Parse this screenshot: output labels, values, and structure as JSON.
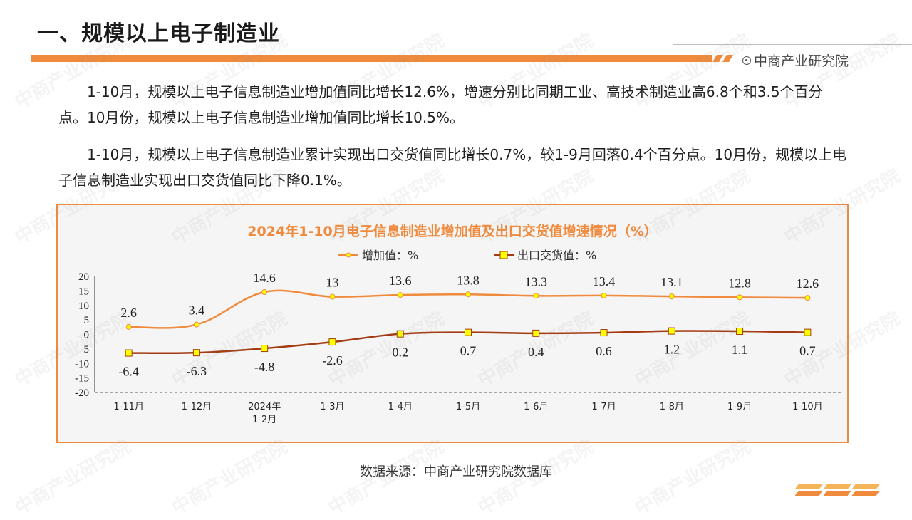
{
  "page": {
    "title": "一、规模以上电子制造业",
    "brand": "中商产业研究院",
    "paragraphs": [
      "1-10月，规模以上电子信息制造业增加值同比增长12.6%，增速分别比同期工业、高技术制造业高6.8个和3.5个百分点。10月份，规模以上电子信息制造业增加值同比增长10.5%。",
      "1-10月，规模以上电子信息制造业累计实现出口交货值同比增长0.7%，较1-9月回落0.4个百分点。10月份，规模以上电子信息制造业实现出口交货值同比下降0.1%。"
    ],
    "source": "数据来源：中商产业研究院数据库",
    "watermark": "中商产业研究院"
  },
  "colors": {
    "accent": "#f08a3c",
    "series1": "#f08a3c",
    "series2": "#a33c12",
    "marker2": "#ffff00",
    "chart_bg": "#f5f5f5"
  },
  "chart_data": {
    "type": "line",
    "title": "2024年1-10月电子信息制造业增加值及出口交货值增速情况（%）",
    "categories": [
      "1-11月",
      "1-12月",
      "2024年\n1-2月",
      "1-3月",
      "1-4月",
      "1-5月",
      "1-6月",
      "1-7月",
      "1-8月",
      "1-9月",
      "1-10月"
    ],
    "series": [
      {
        "name": "增加值：%",
        "values": [
          2.6,
          3.4,
          14.6,
          13,
          13.6,
          13.8,
          13.3,
          13.4,
          13.1,
          12.8,
          12.6
        ],
        "labels": [
          "2.6",
          "3.4",
          "14.6",
          "13",
          "13.6",
          "13.8",
          "13.3",
          "13.4",
          "13.1",
          "12.8",
          "12.6"
        ]
      },
      {
        "name": "出口交货值：%",
        "values": [
          -6.4,
          -6.3,
          -4.8,
          -2.6,
          0.2,
          0.7,
          0.4,
          0.6,
          1.2,
          1.1,
          0.7
        ],
        "labels": [
          "-6.4",
          "-6.3",
          "-4.8",
          "-2.6",
          "0.2",
          "0.7",
          "0.4",
          "0.6",
          "1.2",
          "1.1",
          "0.7"
        ]
      }
    ],
    "ylim": [
      -20,
      20
    ],
    "yticks": [
      "20",
      "15",
      "10",
      "5",
      "0",
      "-5",
      "-10",
      "-15",
      "-20"
    ],
    "legend": "top-center",
    "grid": false
  }
}
